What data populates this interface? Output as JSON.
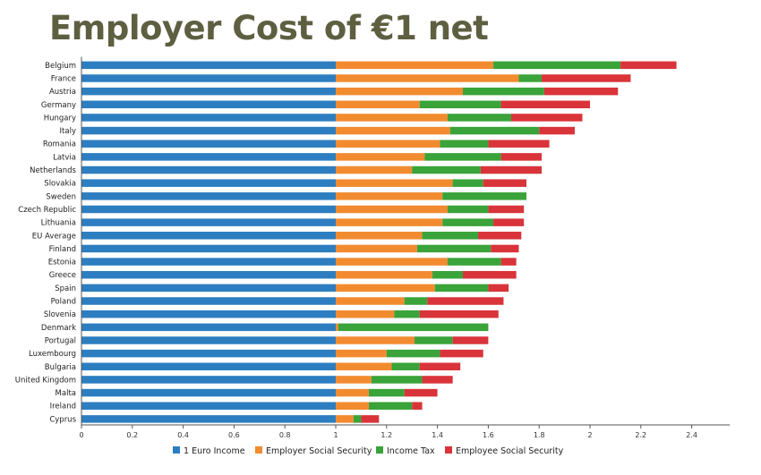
{
  "title": "Employer Cost of €1 net",
  "colors": {
    "title": "#5e5f41",
    "series": [
      "#2d7ec0",
      "#f28b30",
      "#3aa33a",
      "#d9343a"
    ],
    "axis": "#555555"
  },
  "chart_data": {
    "type": "bar",
    "orientation": "horizontal",
    "stacked": true,
    "title": "Employer Cost of €1 net",
    "xlim": [
      0,
      2.55
    ],
    "xticks": [
      0,
      0.2,
      0.4,
      0.6,
      0.8,
      1,
      1.2,
      1.4,
      1.6,
      1.8,
      2,
      2.2,
      2.4
    ],
    "grid": false,
    "legend_position": "bottom",
    "categories": [
      "Belgium",
      "France",
      "Austria",
      "Germany",
      "Hungary",
      "Italy",
      "Romania",
      "Latvia",
      "Netherlands",
      "Slovakia",
      "Sweden",
      "Czech Republic",
      "Lithuania",
      "EU Average",
      "Finland",
      "Estonia",
      "Greece",
      "Spain",
      "Poland",
      "Slovenia",
      "Denmark",
      "Portugal",
      "Luxembourg",
      "Bulgaria",
      "United Kingdom",
      "Malta",
      "Ireland",
      "Cyprus"
    ],
    "series": [
      {
        "name": "1 Euro Income",
        "values": [
          1,
          1,
          1,
          1,
          1,
          1,
          1,
          1,
          1,
          1,
          1,
          1,
          1,
          1,
          1,
          1,
          1,
          1,
          1,
          1,
          1,
          1,
          1,
          1,
          1,
          1,
          1,
          1
        ]
      },
      {
        "name": "Employer Social Security",
        "values": [
          0.62,
          0.72,
          0.5,
          0.33,
          0.44,
          0.45,
          0.41,
          0.35,
          0.3,
          0.46,
          0.42,
          0.44,
          0.42,
          0.34,
          0.32,
          0.44,
          0.38,
          0.39,
          0.27,
          0.23,
          0.01,
          0.31,
          0.2,
          0.22,
          0.14,
          0.13,
          0.13,
          0.07
        ]
      },
      {
        "name": "Income Tax",
        "values": [
          0.5,
          0.09,
          0.32,
          0.32,
          0.25,
          0.35,
          0.19,
          0.3,
          0.27,
          0.12,
          0.33,
          0.16,
          0.2,
          0.22,
          0.29,
          0.21,
          0.12,
          0.21,
          0.09,
          0.1,
          0.59,
          0.15,
          0.21,
          0.11,
          0.2,
          0.14,
          0.17,
          0.03
        ]
      },
      {
        "name": "Employee Social Security",
        "values": [
          0.22,
          0.35,
          0.29,
          0.35,
          0.28,
          0.14,
          0.24,
          0.16,
          0.24,
          0.17,
          0.0,
          0.14,
          0.12,
          0.17,
          0.11,
          0.06,
          0.21,
          0.08,
          0.3,
          0.31,
          0.0,
          0.14,
          0.17,
          0.16,
          0.12,
          0.13,
          0.04,
          0.07
        ]
      }
    ]
  }
}
